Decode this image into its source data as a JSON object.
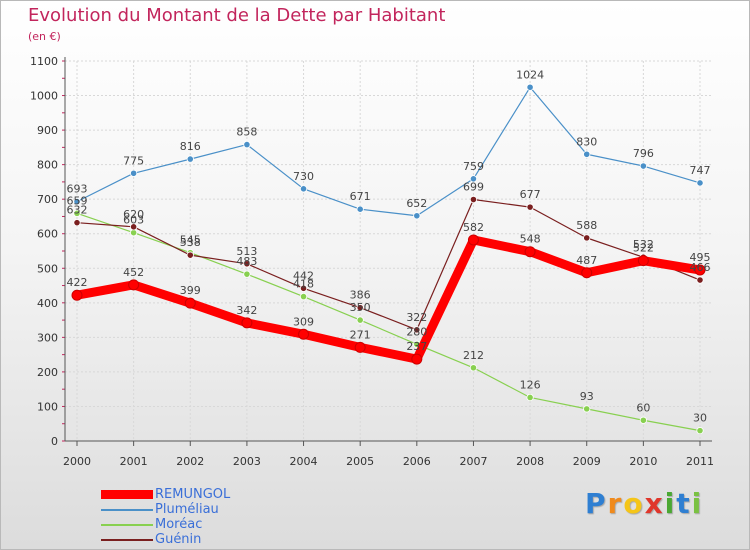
{
  "chart_data": {
    "type": "line",
    "title": "Evolution du Montant de la Dette par Habitant",
    "subtitle": "(en €)",
    "x": [
      "2000",
      "2001",
      "2002",
      "2003",
      "2004",
      "2005",
      "2006",
      "2007",
      "2008",
      "2009",
      "2010",
      "2011"
    ],
    "ylim": [
      0,
      1100
    ],
    "yticks": [
      "0",
      "100",
      "200",
      "300",
      "400",
      "500",
      "600",
      "700",
      "800",
      "900",
      "1000",
      "1100"
    ],
    "grid": true,
    "legend_position": "bottom-left",
    "series": [
      {
        "name": "REMUNGOL",
        "color": "#ff0000",
        "values": [
          422,
          452,
          399,
          342,
          309,
          271,
          237,
          582,
          548,
          487,
          522,
          495
        ],
        "labels": [
          "422",
          "452",
          "399",
          "342",
          "309",
          "271",
          "237",
          "582",
          "548",
          "487",
          "522",
          "495"
        ]
      },
      {
        "name": "Pluméliau",
        "color": "#4a90c8",
        "values": [
          693,
          775,
          816,
          858,
          730,
          671,
          652,
          759,
          1024,
          830,
          796,
          747
        ],
        "labels": [
          "693",
          "775",
          "816",
          "858",
          "730",
          "671",
          "652",
          "759",
          "1024",
          "830",
          "796",
          "747"
        ]
      },
      {
        "name": "Moréac",
        "color": "#88d050",
        "values": [
          659,
          603,
          545,
          483,
          418,
          350,
          280,
          212,
          126,
          93,
          60,
          30
        ],
        "labels": [
          "659",
          "603",
          "545",
          "483",
          "418",
          "350",
          "280",
          "212",
          "126",
          "93",
          "60",
          "30"
        ]
      },
      {
        "name": "Guénin",
        "color": "#7a1f1f",
        "values": [
          632,
          620,
          538,
          513,
          442,
          386,
          322,
          699,
          677,
          588,
          532,
          466
        ],
        "labels": [
          "632",
          "620",
          "538",
          "513",
          "442",
          "386",
          "322",
          "699",
          "677",
          "588",
          "532",
          "466"
        ]
      }
    ]
  },
  "logo": {
    "letters": [
      "P",
      "r",
      "o",
      "x",
      "i",
      "t",
      "i"
    ],
    "colors": [
      "#2f7fd2",
      "#f08a1c",
      "#f5c518",
      "#e0362b",
      "#4aa832",
      "#2f7fd2",
      "#7ac142"
    ]
  }
}
